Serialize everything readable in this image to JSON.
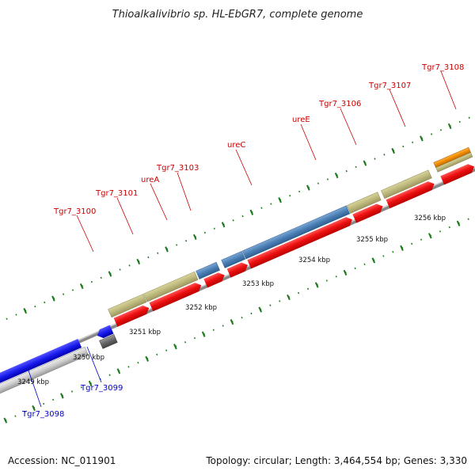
{
  "title": "Thioalkalivibrio sp. HL-EbGR7, complete genome",
  "footer": {
    "accession": "Accession: NC_011901",
    "info": "Topology: circular; Length: 3,464,554 bp; Genes: 3,330"
  },
  "scale_ticks": [
    {
      "label": "3249 kbp"
    },
    {
      "label": "3250 kbp"
    },
    {
      "label": "3251 kbp"
    },
    {
      "label": "3252 kbp"
    },
    {
      "label": "3253 kbp"
    },
    {
      "label": "3254 kbp"
    },
    {
      "label": "3255 kbp"
    },
    {
      "label": "3256 kbp"
    }
  ],
  "gene_labels": [
    {
      "name": "Tgr7_3100",
      "color": "red"
    },
    {
      "name": "Tgr7_3101",
      "color": "red"
    },
    {
      "name": "ureA",
      "color": "red"
    },
    {
      "name": "Tgr7_3103",
      "color": "red"
    },
    {
      "name": "ureC",
      "color": "red"
    },
    {
      "name": "ureE",
      "color": "red"
    },
    {
      "name": "Tgr7_3106",
      "color": "red"
    },
    {
      "name": "Tgr7_3107",
      "color": "red"
    },
    {
      "name": "Tgr7_3108",
      "color": "red"
    },
    {
      "name": "Tgr7_3099",
      "color": "blue"
    },
    {
      "name": "Tgr7_3098",
      "color": "blue"
    }
  ],
  "colors": {
    "cds_forward": "#ee1111",
    "cds_reverse": "#1a1aee",
    "gene_khaki": "#b8b478",
    "gene_steelblue": "#4a7fb5",
    "gene_orange": "#f08c00",
    "gene_gray": "#666666",
    "backbone": "#888888",
    "tick_green": "#1a7a1a"
  }
}
